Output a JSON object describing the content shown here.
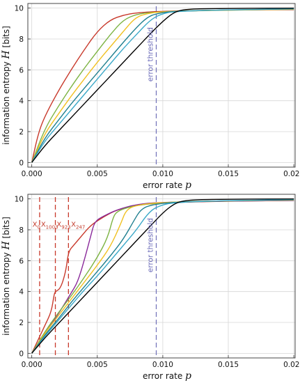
{
  "chart_data": [
    {
      "type": "line",
      "xlabel": "error rate",
      "xlabel_symbol": "p",
      "ylabel": "information entropy",
      "ylabel_symbol": "H",
      "ylabel_unit": "[bits]",
      "xlim": [
        -0.0003,
        0.0201
      ],
      "ylim": [
        -0.3,
        10.3
      ],
      "xticks": [
        0,
        0.005,
        0.01,
        0.015,
        0.02
      ],
      "xtick_labels": [
        "0.000",
        "0.005",
        "0.010",
        "0.015",
        "0.020"
      ],
      "yticks": [
        0,
        2,
        4,
        6,
        8,
        10
      ],
      "ytick_labels": [
        "0",
        "2",
        "4",
        "6",
        "8",
        "10"
      ],
      "grid": true,
      "threshold": {
        "x": 0.0095,
        "label": "error threshold",
        "color": "#7070b8"
      },
      "series": [
        {
          "color": "#c8392b",
          "points": [
            [
              0,
              0
            ],
            [
              0.0005,
              1.9
            ],
            [
              0.001,
              3.0
            ],
            [
              0.002,
              4.6
            ],
            [
              0.003,
              6.0
            ],
            [
              0.004,
              7.3
            ],
            [
              0.005,
              8.5
            ],
            [
              0.006,
              9.25
            ],
            [
              0.007,
              9.55
            ],
            [
              0.008,
              9.7
            ],
            [
              0.01,
              9.8
            ],
            [
              0.015,
              9.88
            ],
            [
              0.02,
              9.9
            ]
          ]
        },
        {
          "color": "#7cb342",
          "points": [
            [
              0,
              0
            ],
            [
              0.001,
              2.2
            ],
            [
              0.002,
              3.6
            ],
            [
              0.003,
              4.9
            ],
            [
              0.004,
              6.1
            ],
            [
              0.005,
              7.2
            ],
            [
              0.006,
              8.3
            ],
            [
              0.007,
              9.25
            ],
            [
              0.008,
              9.6
            ],
            [
              0.009,
              9.72
            ],
            [
              0.012,
              9.85
            ],
            [
              0.02,
              9.92
            ]
          ]
        },
        {
          "color": "#f0c020",
          "points": [
            [
              0,
              0
            ],
            [
              0.001,
              1.9
            ],
            [
              0.002,
              3.1
            ],
            [
              0.003,
              4.3
            ],
            [
              0.004,
              5.4
            ],
            [
              0.005,
              6.5
            ],
            [
              0.006,
              7.5
            ],
            [
              0.007,
              8.5
            ],
            [
              0.0078,
              9.3
            ],
            [
              0.0085,
              9.6
            ],
            [
              0.01,
              9.8
            ],
            [
              0.02,
              9.93
            ]
          ]
        },
        {
          "color": "#1f7f8f",
          "points": [
            [
              0,
              0
            ],
            [
              0.001,
              1.6
            ],
            [
              0.002,
              2.7
            ],
            [
              0.003,
              3.8
            ],
            [
              0.004,
              4.8
            ],
            [
              0.005,
              5.8
            ],
            [
              0.006,
              6.8
            ],
            [
              0.007,
              7.8
            ],
            [
              0.008,
              8.75
            ],
            [
              0.0088,
              9.4
            ],
            [
              0.0095,
              9.65
            ],
            [
              0.011,
              9.82
            ],
            [
              0.02,
              9.95
            ]
          ]
        },
        {
          "color": "#3aa8c8",
          "points": [
            [
              0,
              0
            ],
            [
              0.001,
              1.4
            ],
            [
              0.002,
              2.4
            ],
            [
              0.003,
              3.4
            ],
            [
              0.004,
              4.4
            ],
            [
              0.005,
              5.4
            ],
            [
              0.006,
              6.4
            ],
            [
              0.007,
              7.4
            ],
            [
              0.008,
              8.3
            ],
            [
              0.009,
              9.2
            ],
            [
              0.0098,
              9.6
            ],
            [
              0.011,
              9.82
            ],
            [
              0.02,
              9.96
            ]
          ]
        },
        {
          "color": "#000000",
          "points": [
            [
              0,
              0
            ],
            [
              0.001,
              1.1
            ],
            [
              0.002,
              2.0
            ],
            [
              0.003,
              2.9
            ],
            [
              0.004,
              3.8
            ],
            [
              0.005,
              4.7
            ],
            [
              0.006,
              5.6
            ],
            [
              0.007,
              6.5
            ],
            [
              0.008,
              7.4
            ],
            [
              0.009,
              8.3
            ],
            [
              0.01,
              9.15
            ],
            [
              0.0108,
              9.7
            ],
            [
              0.0115,
              9.9
            ],
            [
              0.013,
              9.97
            ],
            [
              0.02,
              10.0
            ]
          ]
        }
      ]
    },
    {
      "type": "line",
      "xlabel": "error rate",
      "xlabel_symbol": "p",
      "ylabel": "information entropy",
      "ylabel_symbol": "H",
      "ylabel_unit": "[bits]",
      "xlim": [
        -0.0003,
        0.0201
      ],
      "ylim": [
        -0.3,
        10.3
      ],
      "xticks": [
        0,
        0.005,
        0.01,
        0.015,
        0.02
      ],
      "xtick_labels": [
        "0.000",
        "0.005",
        "0.010",
        "0.015",
        "0.020"
      ],
      "yticks": [
        0,
        2,
        4,
        6,
        8,
        10
      ],
      "ytick_labels": [
        "0",
        "2",
        "4",
        "6",
        "8",
        "10"
      ],
      "grid": true,
      "threshold": {
        "x": 0.0095,
        "label": "error threshold",
        "color": "#7070b8"
      },
      "marker_lines": [
        {
          "x": 0.0006,
          "label": "X",
          "sub": "0",
          "color": "#c8392b"
        },
        {
          "x": 0.0018,
          "label": "X",
          "sub": "1003",
          "color": "#c8392b"
        },
        {
          "x": 0.0028,
          "label": "X",
          "sub": "923",
          "color": "#c8392b"
        }
      ],
      "marker_labels": [
        {
          "x": 5e-05,
          "y": 8.2,
          "label": "X",
          "sub": "0"
        },
        {
          "x": 0.0007,
          "y": 8.2,
          "label": "X",
          "sub": "1003"
        },
        {
          "x": 0.0019,
          "y": 8.2,
          "label": "X",
          "sub": "923"
        },
        {
          "x": 0.003,
          "y": 8.2,
          "label": "X",
          "sub": "247"
        }
      ],
      "series": [
        {
          "color": "#c8392b",
          "points": [
            [
              0,
              0
            ],
            [
              0.0005,
              0.9
            ],
            [
              0.001,
              1.8
            ],
            [
              0.0015,
              2.7
            ],
            [
              0.0017,
              3.8
            ],
            [
              0.0018,
              4.0
            ],
            [
              0.0022,
              4.2
            ],
            [
              0.0026,
              5.3
            ],
            [
              0.0028,
              6.6
            ],
            [
              0.0032,
              7.0
            ],
            [
              0.0038,
              7.6
            ],
            [
              0.0045,
              8.3
            ],
            [
              0.0055,
              8.85
            ],
            [
              0.0065,
              9.3
            ],
            [
              0.008,
              9.6
            ],
            [
              0.01,
              9.75
            ],
            [
              0.015,
              9.86
            ],
            [
              0.02,
              9.9
            ]
          ]
        },
        {
          "color": "#8a2a9a",
          "points": [
            [
              0,
              0
            ],
            [
              0.001,
              1.3
            ],
            [
              0.002,
              2.5
            ],
            [
              0.003,
              3.9
            ],
            [
              0.0035,
              4.6
            ],
            [
              0.004,
              6.0
            ],
            [
              0.0045,
              7.6
            ],
            [
              0.0048,
              8.55
            ],
            [
              0.0055,
              8.9
            ],
            [
              0.0065,
              9.3
            ],
            [
              0.008,
              9.65
            ],
            [
              0.01,
              9.8
            ],
            [
              0.02,
              9.9
            ]
          ]
        },
        {
          "color": "#7cb342",
          "points": [
            [
              0,
              0
            ],
            [
              0.001,
              1.4
            ],
            [
              0.002,
              2.6
            ],
            [
              0.003,
              3.7
            ],
            [
              0.004,
              4.9
            ],
            [
              0.005,
              6.2
            ],
            [
              0.0058,
              7.5
            ],
            [
              0.0062,
              8.8
            ],
            [
              0.0065,
              9.2
            ],
            [
              0.0075,
              9.5
            ],
            [
              0.009,
              9.7
            ],
            [
              0.012,
              9.85
            ],
            [
              0.02,
              9.92
            ]
          ]
        },
        {
          "color": "#f0c020",
          "points": [
            [
              0,
              0
            ],
            [
              0.001,
              1.3
            ],
            [
              0.002,
              2.4
            ],
            [
              0.003,
              3.5
            ],
            [
              0.004,
              4.6
            ],
            [
              0.005,
              5.7
            ],
            [
              0.006,
              6.9
            ],
            [
              0.0068,
              8.4
            ],
            [
              0.0072,
              9.3
            ],
            [
              0.008,
              9.6
            ],
            [
              0.01,
              9.8
            ],
            [
              0.02,
              9.93
            ]
          ]
        },
        {
          "color": "#1f7f8f",
          "points": [
            [
              0,
              0
            ],
            [
              0.001,
              1.2
            ],
            [
              0.002,
              2.2
            ],
            [
              0.003,
              3.3
            ],
            [
              0.004,
              4.3
            ],
            [
              0.005,
              5.3
            ],
            [
              0.006,
              6.3
            ],
            [
              0.007,
              7.4
            ],
            [
              0.0078,
              8.6
            ],
            [
              0.0083,
              9.3
            ],
            [
              0.009,
              9.6
            ],
            [
              0.011,
              9.82
            ],
            [
              0.02,
              9.95
            ]
          ]
        },
        {
          "color": "#3aa8c8",
          "points": [
            [
              0,
              0
            ],
            [
              0.001,
              1.1
            ],
            [
              0.002,
              2.1
            ],
            [
              0.003,
              3.1
            ],
            [
              0.004,
              4.1
            ],
            [
              0.005,
              5.0
            ],
            [
              0.006,
              6.0
            ],
            [
              0.007,
              7.0
            ],
            [
              0.008,
              8.0
            ],
            [
              0.0088,
              9.0
            ],
            [
              0.0095,
              9.5
            ],
            [
              0.011,
              9.82
            ],
            [
              0.02,
              9.96
            ]
          ]
        },
        {
          "color": "#000000",
          "points": [
            [
              0,
              0
            ],
            [
              0.001,
              1.0
            ],
            [
              0.002,
              1.9
            ],
            [
              0.003,
              2.8
            ],
            [
              0.004,
              3.7
            ],
            [
              0.005,
              4.6
            ],
            [
              0.006,
              5.5
            ],
            [
              0.007,
              6.4
            ],
            [
              0.008,
              7.3
            ],
            [
              0.009,
              8.2
            ],
            [
              0.01,
              9.1
            ],
            [
              0.0108,
              9.65
            ],
            [
              0.0115,
              9.88
            ],
            [
              0.013,
              9.97
            ],
            [
              0.02,
              10.0
            ]
          ]
        }
      ]
    }
  ]
}
